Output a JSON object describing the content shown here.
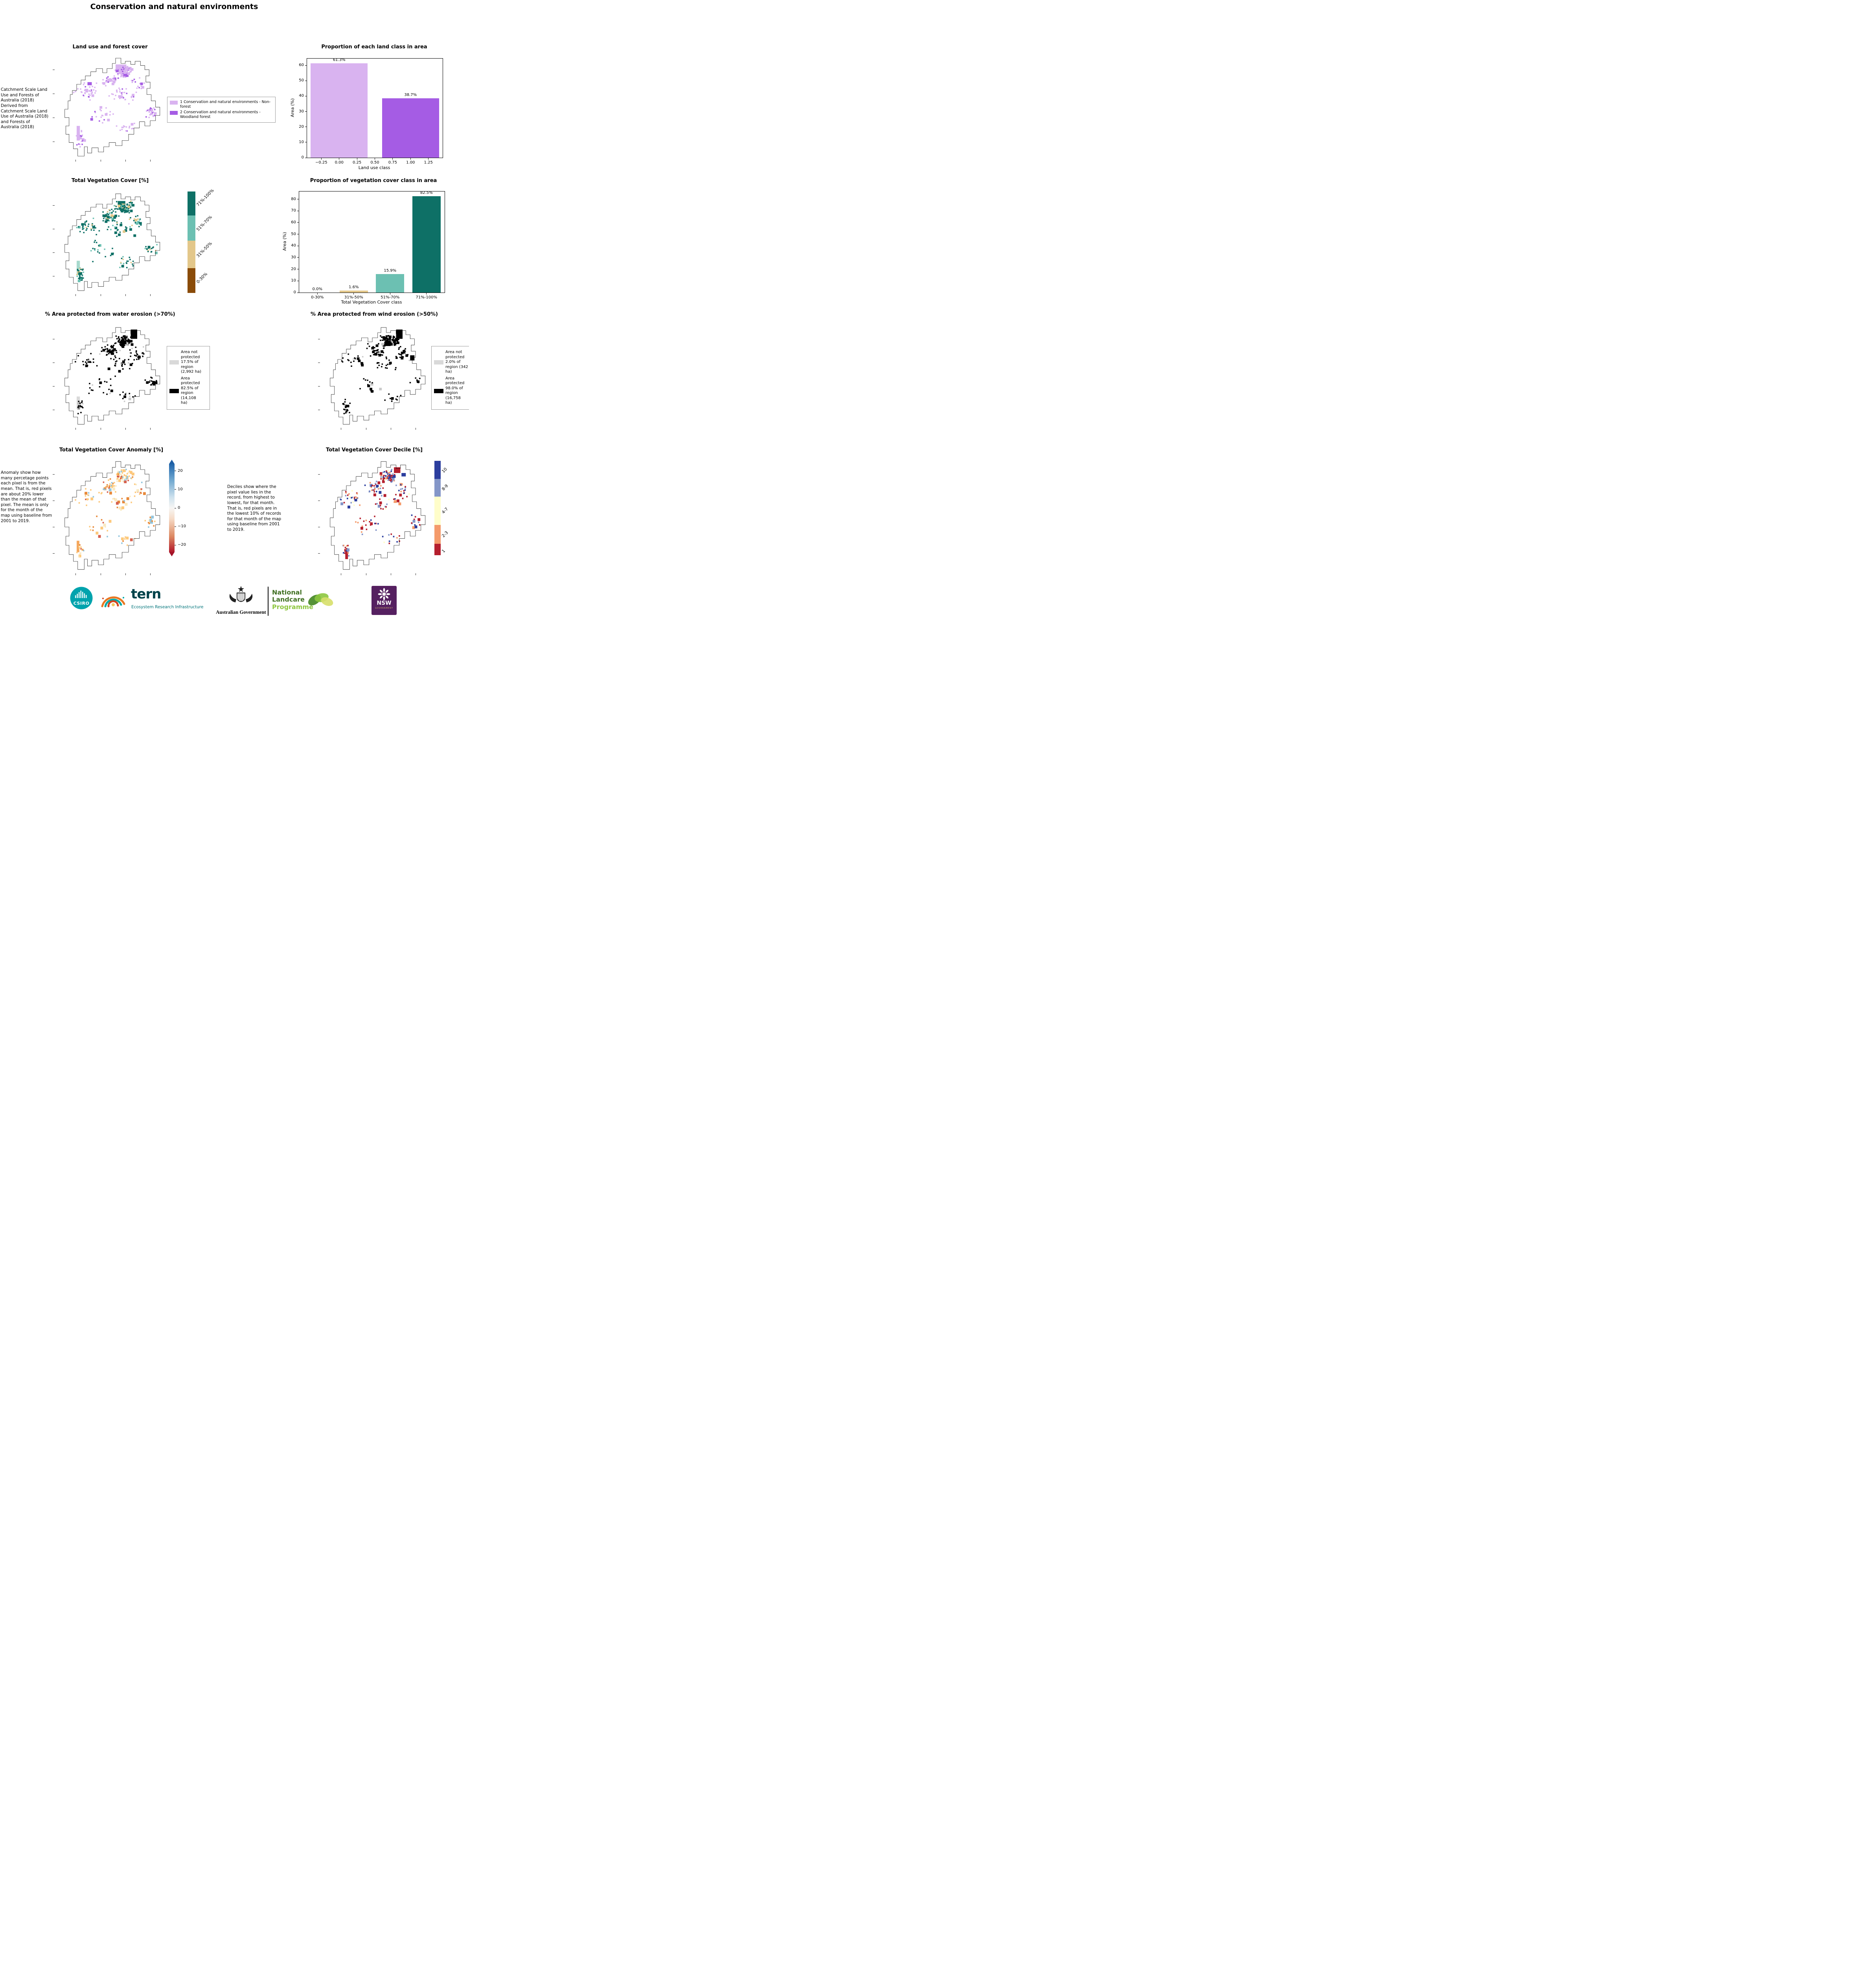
{
  "page": {
    "title": "Conservation and natural environments"
  },
  "panels": {
    "land_use_map": {
      "title": "Land use and forest cover",
      "caption": " Catchment Scale Land Use and Forests of Australia (2018) Derived from Catchment Scale Land Use of Australia (2018) and Forests of Australia (2018)",
      "legend": [
        {
          "label": "1 Conservation and natural environments - Non-forest",
          "color": "#d9b3f0"
        },
        {
          "label": "2 Conservation and natural environments - Woodland forest",
          "color": "#a55ce4"
        }
      ]
    },
    "veg_cover_map": {
      "title": "Total Vegetation Cover [%]",
      "colorbar": [
        {
          "label": "71%-100%",
          "color": "#0e7066",
          "frac": 0.235
        },
        {
          "label": "51%-70%",
          "color": "#6cc0b2",
          "frac": 0.25
        },
        {
          "label": "31%-50%",
          "color": "#e3c78a",
          "frac": 0.27
        },
        {
          "label": "0-30%",
          "color": "#8a4b08",
          "frac": 0.245
        }
      ]
    },
    "water_erosion": {
      "title": "% Area protected from water erosion (>70%)",
      "legend": [
        {
          "label": "Area not protected 17.5% of region (2,992 ha)",
          "color": "#d9d9d9"
        },
        {
          "label": "Area protected 82.5% of region (14,108 ha)",
          "color": "#000000"
        }
      ]
    },
    "wind_erosion": {
      "title": "% Area protected from wind erosion (>50%)",
      "legend": [
        {
          "label": "Area not protected 2.0% of region (342 ha)",
          "color": "#d9d9d9"
        },
        {
          "label": "Area protected 98.0% of region (16,758 ha)",
          "color": "#000000"
        }
      ]
    },
    "anomaly": {
      "title": "Total Vegetation Cover Anomaly [%]",
      "caption": "Anomaly show how many percetage points each pixel is from the mean. That is, red pixels are about 20% lower than the mean of that pixel. The mean is only for the month of the map using baseline from 2001 to 2019.",
      "colorbar_ticks": [
        "20",
        "10",
        "0",
        "−10",
        "−20"
      ]
    },
    "decile": {
      "title": "Total Vegetation Cover Decile [%]",
      "caption": "Deciles show where the pixel value lies in the record, from highest to lowest, for that month. That is, red pixels are in the lowest 10% of records for that month of the map using baseline from 2001 to 2019.",
      "colorbar": [
        {
          "label": "10",
          "color": "#2c3e9e",
          "frac": 0.19
        },
        {
          "label": "8-9",
          "color": "#8496c8",
          "frac": 0.19
        },
        {
          "label": "4-7",
          "color": "#fffdc9",
          "frac": 0.3
        },
        {
          "label": "2-3",
          "color": "#f49a6a",
          "frac": 0.2
        },
        {
          "label": "1",
          "color": "#b51f2e",
          "frac": 0.12
        }
      ]
    }
  },
  "chart_data": [
    {
      "type": "bar",
      "title": "Proportion of each land class in area",
      "xlabel": "Land use class",
      "ylabel": "Area (%)",
      "x": [
        0,
        1
      ],
      "values": [
        61.3,
        38.7
      ],
      "bar_labels": [
        "61.3%",
        "38.7%"
      ],
      "bar_colors": [
        "#d9b3f0",
        "#a55ce4"
      ],
      "bar_width": 0.8,
      "xlim": [
        -0.45,
        1.45
      ],
      "xticks": [
        -0.25,
        0,
        0.25,
        0.5,
        0.75,
        1,
        1.25
      ],
      "xtick_labels": [
        "−0.25",
        "0.00",
        "0.25",
        "0.50",
        "0.75",
        "1.00",
        "1.25"
      ],
      "yticks": [
        0,
        10,
        20,
        30,
        40,
        50,
        60
      ],
      "ylim": [
        0,
        64.4
      ],
      "grid": false,
      "legend_position": "none"
    },
    {
      "type": "bar",
      "title": "Proportion of vegetation cover class in area",
      "xlabel": "Total Vegetation Cover class",
      "ylabel": "Area (%)",
      "categories": [
        "0-30%",
        "31%-50%",
        "51%-70%",
        "71%-100%"
      ],
      "values": [
        0.0,
        1.6,
        15.9,
        82.5
      ],
      "bar_labels": [
        "0.0%",
        "1.6%",
        "15.9%",
        "82.5%"
      ],
      "bar_colors": [
        "#8a4b08",
        "#e3c78a",
        "#6cc0b2",
        "#0e7066"
      ],
      "yticks": [
        0,
        10,
        20,
        30,
        40,
        50,
        60,
        70,
        80
      ],
      "ylim": [
        0,
        86.6
      ],
      "grid": false,
      "legend_position": "none"
    }
  ],
  "maps": {
    "land_use": {
      "seed": 11,
      "count": 300,
      "palette": [
        [
          "#d9b3f0",
          0.8
        ],
        [
          "#a55ce4",
          0.2
        ]
      ],
      "blobs": [
        [
          56,
          9,
          10,
          7,
          "#d9b3f0"
        ],
        [
          63,
          17,
          5,
          4,
          "#a55ce4"
        ],
        [
          20,
          68,
          3,
          14,
          "#d9b3f0"
        ],
        [
          30,
          26,
          4,
          3,
          "#a55ce4"
        ]
      ]
    },
    "veg_cover": {
      "seed": 23,
      "count": 300,
      "palette": [
        [
          "#0e7066",
          0.72
        ],
        [
          "#6cc0b2",
          0.16
        ],
        [
          "#e3c78a",
          0.12
        ]
      ],
      "blobs": [
        [
          58,
          10,
          7,
          6,
          "#0e7066"
        ],
        [
          20,
          68,
          3,
          14,
          "#a7d9cd"
        ],
        [
          64,
          18,
          4,
          3,
          "#0e7066"
        ]
      ]
    },
    "water_erosion": {
      "seed": 37,
      "count": 260,
      "palette": [
        [
          "#000000",
          0.85
        ],
        [
          "#c9c9c9",
          0.15
        ]
      ],
      "blobs": [
        [
          70,
          5,
          6,
          9,
          "#000000"
        ],
        [
          60,
          16,
          5,
          5,
          "#000000"
        ],
        [
          20,
          70,
          3,
          12,
          "#d9d9d9"
        ]
      ]
    },
    "wind_erosion": {
      "seed": 43,
      "count": 240,
      "palette": [
        [
          "#000000",
          0.95
        ],
        [
          "#c9c9c9",
          0.05
        ]
      ],
      "blobs": [
        [
          70,
          5,
          6,
          9,
          "#000000"
        ],
        [
          60,
          16,
          5,
          5,
          "#000000"
        ],
        [
          83,
          30,
          4,
          5,
          "#000000"
        ]
      ]
    },
    "anomaly": {
      "seed": 57,
      "count": 200,
      "palette": [
        [
          "#fdc97c",
          0.42
        ],
        [
          "#f9e9c0",
          0.2
        ],
        [
          "#e8893a",
          0.15
        ],
        [
          "#92c5de",
          0.13
        ],
        [
          "#d6604d",
          0.1
        ]
      ],
      "blobs": [
        [
          20,
          72,
          2.5,
          10,
          "#f5a95f"
        ]
      ]
    },
    "decile": {
      "seed": 71,
      "count": 230,
      "palette": [
        [
          "#b51f2e",
          0.3
        ],
        [
          "#f49a6a",
          0.2
        ],
        [
          "#fffdc9",
          0.13
        ],
        [
          "#8496c8",
          0.15
        ],
        [
          "#2c3e9e",
          0.22
        ]
      ],
      "blobs": [
        [
          68,
          8,
          6,
          5,
          "#b51f2e"
        ],
        [
          75,
          13,
          4,
          3,
          "#2c3e9e"
        ],
        [
          23,
          80,
          2.5,
          8,
          "#b51f2e"
        ]
      ]
    }
  },
  "footer": {
    "csiro": "CSIRO",
    "tern": "tern",
    "tern_sub": "Ecosystem Research Infrastructure",
    "aus_gov": "Australian Government",
    "landcare_1": "National",
    "landcare_2": "Landcare",
    "landcare_3": "Programme",
    "nsw": "NSW",
    "nsw_sub": "GOVERNMENT"
  }
}
